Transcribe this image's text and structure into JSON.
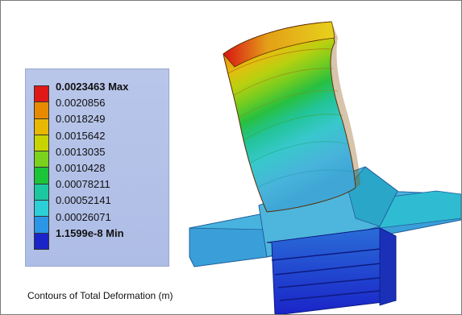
{
  "legend": {
    "entries": [
      {
        "text": "0.0023463 Max",
        "color": "#e01818",
        "bold": true
      },
      {
        "text": "0.0020856",
        "color": "#e88a00",
        "bold": false
      },
      {
        "text": "0.0018249",
        "color": "#e8b800",
        "bold": false
      },
      {
        "text": "0.0015642",
        "color": "#c8d400",
        "bold": false
      },
      {
        "text": "0.0013035",
        "color": "#7ad21c",
        "bold": false
      },
      {
        "text": "0.0010428",
        "color": "#1cc43a",
        "bold": false
      },
      {
        "text": "0.00078211",
        "color": "#1cc8a0",
        "bold": false
      },
      {
        "text": "0.00052141",
        "color": "#2ccfd6",
        "bold": false
      },
      {
        "text": "0.00026071",
        "color": "#2c96e6",
        "bold": false
      },
      {
        "text": "1.1599e-8 Min",
        "color": "#1a24c8",
        "bold": true
      }
    ]
  },
  "caption": "Contours of Total Deformation (m)"
}
